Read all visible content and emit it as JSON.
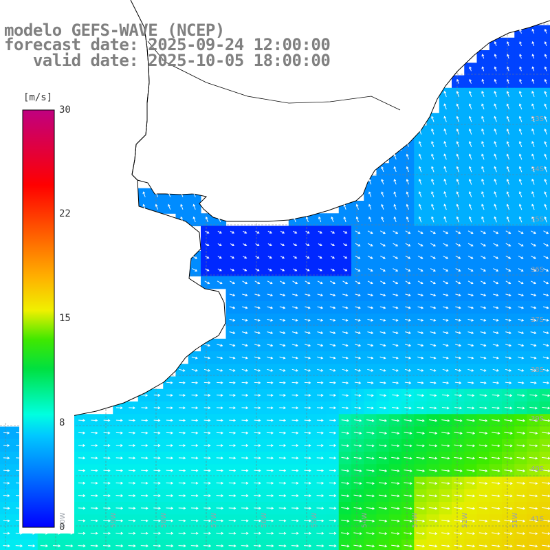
{
  "title": {
    "line1": "modelo GEFS-WAVE (NCEP)",
    "line2": "forecast date: 2025-09-24 12:00:00",
    "line3": "   valid date: 2025-10-05 18:00:00"
  },
  "colorbar": {
    "unit": "[m/s]",
    "ticks": [
      "30",
      "22",
      "15",
      "8",
      "0"
    ],
    "tick_values": [
      30,
      22,
      15,
      8,
      0
    ],
    "range": [
      0,
      30
    ],
    "colors": [
      "#0000ff",
      "#0080ff",
      "#00d8ff",
      "#00ffd0",
      "#00e000",
      "#80f000",
      "#ffff00",
      "#ffa000",
      "#ff4000",
      "#ff0000",
      "#c00080"
    ]
  },
  "map": {
    "lat_labels": [
      "33S",
      "34S",
      "35S",
      "36S",
      "37S",
      "38S",
      "39S",
      "40S",
      "41S"
    ],
    "lon_labels": [
      "60W",
      "59W",
      "58W",
      "57W",
      "56W",
      "55W",
      "54W",
      "53W",
      "52W",
      "51W"
    ],
    "land_color": "#ffffff",
    "grid_color": "#808080",
    "arrow_color": "#ffffff"
  }
}
